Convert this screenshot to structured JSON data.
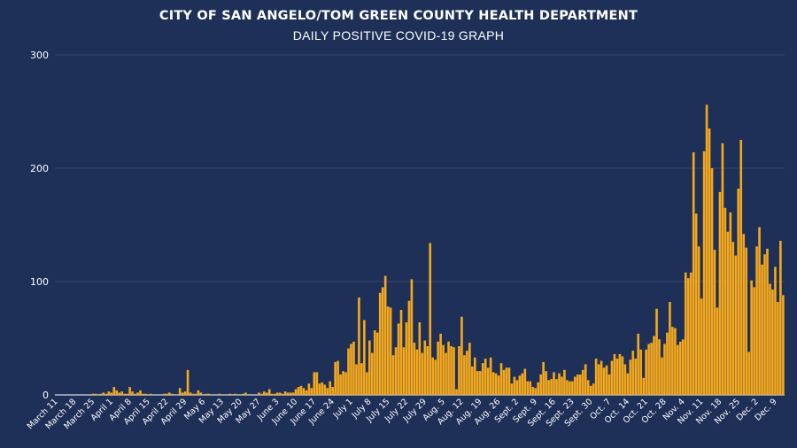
{
  "title": "CITY OF SAN ANGELO/TOM GREEN COUNTY HEALTH DEPARTMENT",
  "subtitle": "DAILY POSITIVE COVID-19 GRAPH",
  "colors": {
    "background": "#1e3057",
    "bar": "#f4a81d",
    "grid": "#3a5076",
    "text": "#ffffff"
  },
  "chart_data": {
    "type": "bar",
    "title": "CITY OF SAN ANGELO/TOM GREEN COUNTY HEALTH DEPARTMENT",
    "subtitle": "DAILY POSITIVE COVID-19 GRAPH",
    "xlabel": "",
    "ylabel": "",
    "ylim": [
      0,
      300
    ],
    "yticks": [
      0,
      100,
      200,
      300
    ],
    "grid": true,
    "start_date": "March 11",
    "x_tick_labels": [
      "March 11",
      "March 18",
      "March 25",
      "April 1",
      "April 8",
      "April 15",
      "April 22",
      "April 29",
      "May 6",
      "May 13",
      "May 20",
      "May 27",
      "June 3",
      "June 10",
      "June 17",
      "June 24",
      "July 1",
      "July 8",
      "July 15",
      "July 22",
      "July 29",
      "Aug. 5",
      "Aug. 12",
      "Aug. 19",
      "Aug. 26",
      "Sept. 2",
      "Sept. 9",
      "Sept. 16",
      "Sept. 23",
      "Sept. 30",
      "Oct. 7",
      "Oct. 14",
      "Oct. 21",
      "Oct. 28",
      "Nov. 4",
      "Nov. 11",
      "Nov. 18",
      "Nov. 25",
      "Dec. 2",
      "Dec. 9"
    ],
    "series": [
      {
        "values": [
          0,
          0,
          0,
          0,
          0,
          0,
          0,
          0,
          0,
          0,
          0,
          0,
          0,
          0,
          1,
          1,
          0,
          1,
          2,
          1,
          3,
          2,
          7,
          4,
          2,
          3,
          1,
          1,
          7,
          3,
          1,
          2,
          4,
          1,
          1,
          0,
          1,
          0,
          0,
          0,
          0,
          1,
          1,
          2,
          1,
          0,
          0,
          6,
          2,
          3,
          22,
          2,
          1,
          1,
          4,
          2,
          0,
          1,
          1,
          0,
          0,
          0,
          1,
          0,
          0,
          0,
          1,
          0,
          1,
          0,
          0,
          1,
          2,
          0,
          0,
          0,
          0,
          2,
          1,
          3,
          2,
          5,
          1,
          1,
          2,
          2,
          1,
          3,
          2,
          2,
          2,
          5,
          7,
          8,
          6,
          4,
          10,
          6,
          20,
          20,
          10,
          11,
          9,
          6,
          12,
          7,
          29,
          30,
          18,
          21,
          20,
          41,
          45,
          47,
          27,
          86,
          28,
          66,
          20,
          48,
          37,
          57,
          55,
          90,
          95,
          105,
          78,
          77,
          35,
          42,
          63,
          75,
          42,
          64,
          83,
          102,
          46,
          40,
          64,
          37,
          48,
          43,
          134,
          33,
          31,
          47,
          54,
          44,
          37,
          47,
          43,
          42,
          5,
          43,
          69,
          35,
          39,
          46,
          25,
          33,
          21,
          21,
          28,
          32,
          24,
          33,
          20,
          19,
          17,
          28,
          22,
          24,
          24,
          10,
          16,
          13,
          17,
          19,
          23,
          12,
          12,
          7,
          6,
          11,
          18,
          29,
          21,
          13,
          14,
          20,
          14,
          19,
          16,
          22,
          13,
          12,
          12,
          16,
          18,
          18,
          22,
          27,
          13,
          8,
          10,
          32,
          27,
          30,
          24,
          26,
          18,
          30,
          36,
          32,
          36,
          34,
          27,
          19,
          31,
          39,
          32,
          54,
          40,
          15,
          40,
          45,
          46,
          52,
          76,
          49,
          33,
          45,
          55,
          82,
          60,
          59,
          44,
          47,
          49,
          108,
          103,
          108,
          214,
          160,
          131,
          85,
          215,
          256,
          235,
          200,
          128,
          77,
          179,
          222,
          165,
          144,
          161,
          135,
          123,
          182,
          225,
          142,
          130,
          38,
          101,
          95,
          131,
          148,
          115,
          124,
          129,
          98,
          93,
          113,
          82,
          136,
          88
        ]
      }
    ]
  }
}
